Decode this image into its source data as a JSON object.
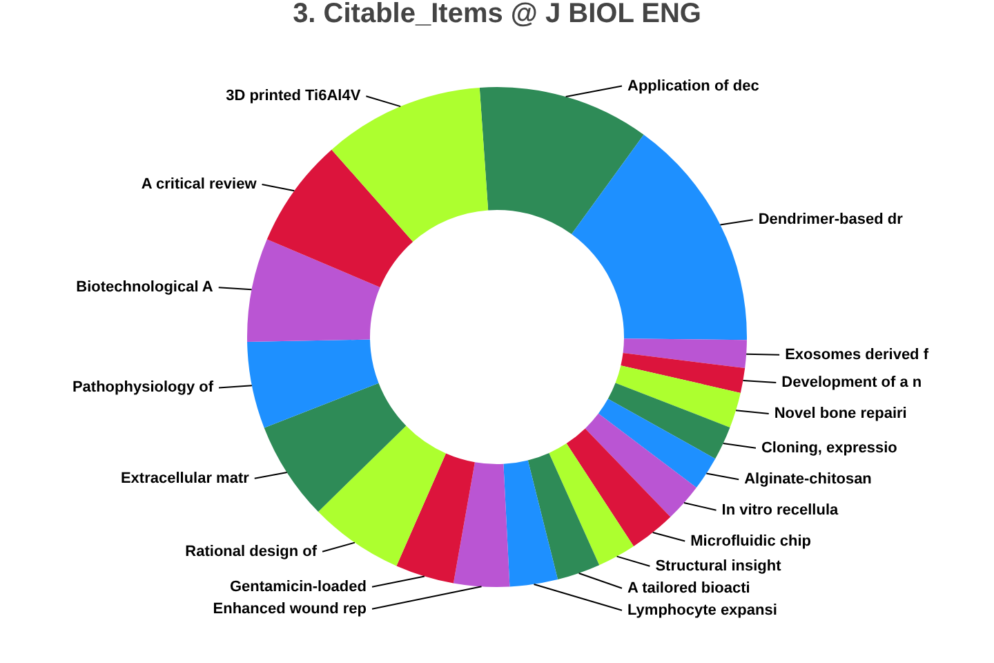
{
  "chart_data": {
    "type": "donut",
    "title": "3. Citable_Items @ J BIOL ENG",
    "categories": [
      "Application of dec",
      "Dendrimer-based dr",
      "Exosomes derived f",
      "Development of a n",
      "Novel bone repairi",
      "Cloning, expressio",
      "Alginate-chitosan",
      "In vitro recellula",
      "Microfluidic chip",
      "Structural insight",
      "A tailored bioacti",
      "Lymphocyte expansi",
      "Enhanced wound rep",
      "Gentamicin-loaded",
      "Rational design of",
      "Extracellular matr",
      "Pathophysiology of",
      "Biotechnological A",
      "A critical review",
      "3D printed Ti6Al4V"
    ],
    "values": [
      11.1,
      15.2,
      1.8,
      1.6,
      2.3,
      2.2,
      2.2,
      2.5,
      3.0,
      2.5,
      2.8,
      3.1,
      3.6,
      3.8,
      6.1,
      6.4,
      5.6,
      6.7,
      7.1,
      10.4
    ],
    "colors": [
      "#2e8b57",
      "#1e90ff",
      "#ba55d3",
      "#dc143c",
      "#adff2f",
      "#2e8b57",
      "#1e90ff",
      "#ba55d3",
      "#dc143c",
      "#adff2f",
      "#2e8b57",
      "#1e90ff",
      "#ba55d3",
      "#dc143c",
      "#adff2f",
      "#2e8b57",
      "#1e90ff",
      "#ba55d3",
      "#dc143c",
      "#adff2f"
    ],
    "legend": false
  }
}
